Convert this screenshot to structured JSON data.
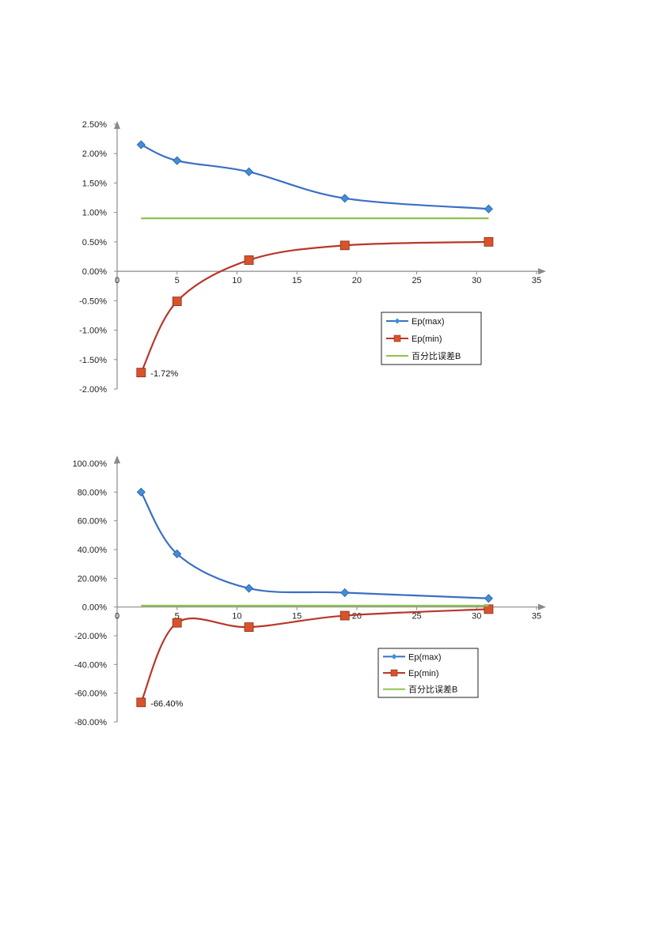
{
  "colors": {
    "max": "#3a6fc4",
    "max_marker": "#3f8fd6",
    "min": "#b8372a",
    "min_marker": "#d9532a",
    "B": "#8bc34a",
    "axis": "#8a8a8a"
  },
  "chart_data": [
    {
      "type": "line",
      "title": "",
      "xlabel": "",
      "ylabel": "",
      "x": [
        2,
        5,
        11,
        19,
        31
      ],
      "xlim": [
        0,
        35
      ],
      "x_ticks": [
        0,
        5,
        10,
        15,
        20,
        25,
        30,
        35
      ],
      "x_tick_labels": [
        "0",
        "5",
        "10",
        "15",
        "20",
        "25",
        "30",
        "35"
      ],
      "ylim": [
        -0.02,
        0.025
      ],
      "y_ticks": [
        0.025,
        0.02,
        0.015,
        0.01,
        0.005,
        0,
        -0.005,
        -0.01,
        -0.015,
        -0.02
      ],
      "y_tick_labels": [
        "2.50%",
        "2.00%",
        "1.50%",
        "1.00%",
        "0.50%",
        "0.00%",
        "-0.50%",
        "-1.00%",
        "-1.50%",
        "-2.00%"
      ],
      "series": [
        {
          "name": "Ep(max)",
          "key": "max",
          "marker": "diamond",
          "values": [
            0.0215,
            0.0188,
            0.0169,
            0.0124,
            0.0106
          ]
        },
        {
          "name": "Ep(min)",
          "key": "min",
          "marker": "square",
          "values": [
            -0.0172,
            -0.0051,
            0.0019,
            0.0044,
            0.005
          ]
        },
        {
          "name": "百分比误差B",
          "key": "B",
          "marker": "none",
          "x": [
            2,
            31
          ],
          "values": [
            0.009,
            0.009
          ]
        }
      ],
      "annotations": [
        {
          "text": "-1.72%",
          "x": 2,
          "y": -0.0172
        }
      ],
      "legend": "lower-right",
      "grid": false
    },
    {
      "type": "line",
      "title": "",
      "xlabel": "",
      "ylabel": "",
      "x": [
        2,
        5,
        11,
        19,
        31
      ],
      "xlim": [
        0,
        35
      ],
      "x_ticks": [
        0,
        5,
        10,
        15,
        20,
        25,
        30,
        35
      ],
      "x_tick_labels": [
        "0",
        "5",
        "10",
        "15",
        "20",
        "25",
        "30",
        "35"
      ],
      "ylim": [
        -0.8,
        1.0
      ],
      "y_ticks": [
        1.0,
        0.8,
        0.6,
        0.4,
        0.2,
        0,
        -0.2,
        -0.4,
        -0.6,
        -0.8
      ],
      "y_tick_labels": [
        "100.00%",
        "80.00%",
        "60.00%",
        "40.00%",
        "20.00%",
        "0.00%",
        "-20.00%",
        "-40.00%",
        "-60.00%",
        "-80.00%"
      ],
      "series": [
        {
          "name": "Ep(max)",
          "key": "max",
          "marker": "diamond",
          "values": [
            0.8,
            0.37,
            0.13,
            0.1,
            0.06
          ]
        },
        {
          "name": "Ep(min)",
          "key": "min",
          "marker": "square",
          "values": [
            -0.664,
            -0.11,
            -0.14,
            -0.06,
            -0.015
          ]
        },
        {
          "name": "百分比误差B",
          "key": "B",
          "marker": "none",
          "x": [
            2,
            31
          ],
          "values": [
            0.009,
            0.009
          ]
        }
      ],
      "annotations": [
        {
          "text": "-66.40%",
          "x": 2,
          "y": -0.664
        }
      ],
      "legend": "lower-right",
      "grid": false
    }
  ]
}
